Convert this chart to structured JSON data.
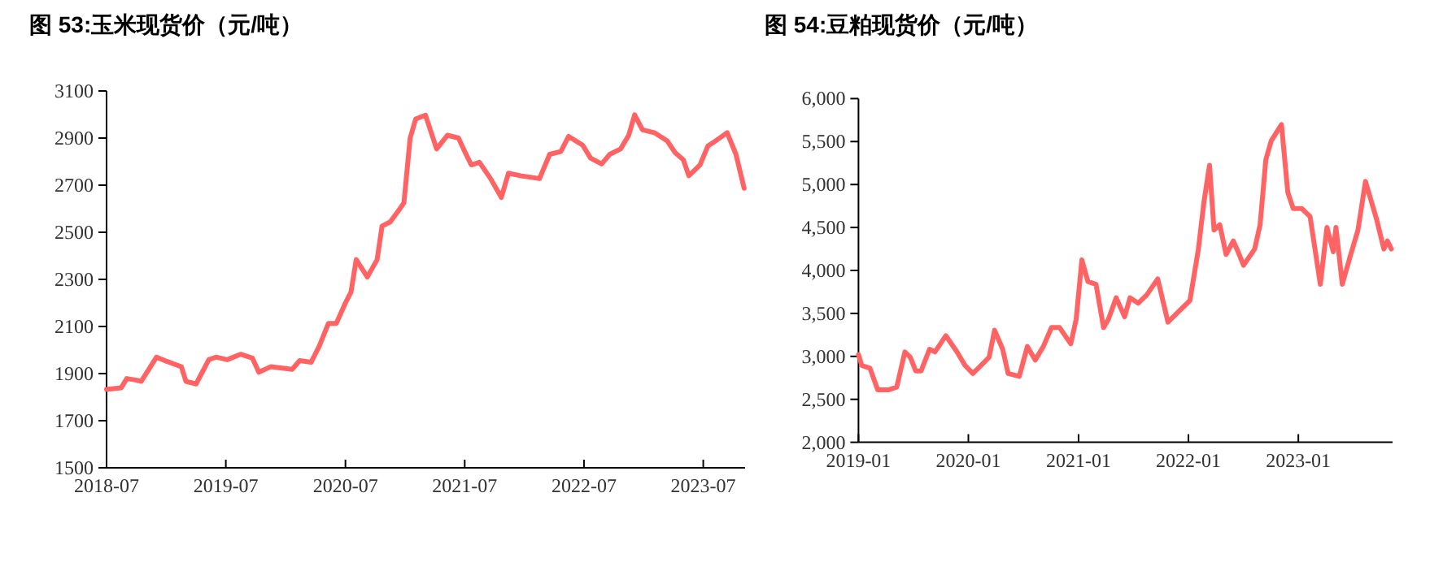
{
  "chart_data": [
    {
      "type": "line",
      "title": "图 53:玉米现货价（元/吨）",
      "xlim": [
        "2018-07-01",
        "2023-11-06"
      ],
      "ylim": [
        1500,
        3100
      ],
      "xticks": [
        "2018-07",
        "2019-07",
        "2020-07",
        "2021-07",
        "2022-07",
        "2023-07"
      ],
      "yticks": [
        1500,
        1700,
        1900,
        2100,
        2300,
        2500,
        2700,
        2900,
        3100
      ],
      "series": [
        {
          "color": "#ff6363",
          "x": [
            "2018-07-01",
            "2018-08-15",
            "2018-09-01",
            "2018-10-01",
            "2018-10-15",
            "2018-12-01",
            "2019-01-01",
            "2019-02-01",
            "2019-02-15",
            "2019-03-01",
            "2019-04-01",
            "2019-05-10",
            "2019-06-01",
            "2019-07-05",
            "2019-08-15",
            "2019-09-20",
            "2019-10-10",
            "2019-11-15",
            "2020-01-20",
            "2020-02-12",
            "2020-03-18",
            "2020-04-12",
            "2020-05-10",
            "2020-06-03",
            "2020-07-01",
            "2020-07-18",
            "2020-08-03",
            "2020-09-06",
            "2020-10-06",
            "2020-10-21",
            "2020-11-15",
            "2020-12-12",
            "2020-12-27",
            "2021-01-15",
            "2021-02-01",
            "2021-03-03",
            "2021-04-06",
            "2021-05-09",
            "2021-06-12",
            "2021-07-01",
            "2021-07-21",
            "2021-08-15",
            "2021-09-18",
            "2021-10-21",
            "2021-11-12",
            "2021-12-18",
            "2022-02-15",
            "2022-03-18",
            "2022-04-21",
            "2022-05-15",
            "2022-06-27",
            "2022-07-21",
            "2022-08-24",
            "2022-09-18",
            "2022-10-21",
            "2022-11-15",
            "2022-12-03",
            "2022-12-27",
            "2023-02-01",
            "2023-03-12",
            "2023-04-06",
            "2023-05-01",
            "2023-05-18",
            "2023-06-21",
            "2023-07-15",
            "2023-08-09",
            "2023-09-12",
            "2023-10-09",
            "2023-11-03"
          ],
          "values": [
            1833,
            1840,
            1879,
            1872,
            1867,
            1970,
            1952,
            1936,
            1929,
            1867,
            1856,
            1959,
            1970,
            1959,
            1982,
            1966,
            1906,
            1929,
            1918,
            1955,
            1948,
            2017,
            2113,
            2113,
            2200,
            2246,
            2384,
            2310,
            2384,
            2526,
            2544,
            2595,
            2625,
            2900,
            2981,
            2997,
            2854,
            2912,
            2900,
            2843,
            2786,
            2797,
            2728,
            2648,
            2751,
            2740,
            2728,
            2831,
            2843,
            2907,
            2870,
            2815,
            2790,
            2831,
            2854,
            2912,
            2999,
            2935,
            2923,
            2889,
            2838,
            2808,
            2740,
            2786,
            2866,
            2889,
            2923,
            2831,
            2687
          ]
        }
      ]
    },
    {
      "type": "line",
      "title": "图 54:豆粕现货价（元/吨）",
      "xlim": [
        "2019-01-01",
        "2023-11-10"
      ],
      "ylim": [
        2000,
        6000
      ],
      "xticks": [
        "2019-01",
        "2020-01",
        "2021-01",
        "2022-01",
        "2023-01"
      ],
      "yticks": [
        {
          "value": 2000,
          "label": "2,000"
        },
        {
          "value": 2500,
          "label": "2,500"
        },
        {
          "value": 3000,
          "label": "3,000"
        },
        {
          "value": 3500,
          "label": "3,500"
        },
        {
          "value": 4000,
          "label": "4,000"
        },
        {
          "value": 4500,
          "label": "4,500"
        },
        {
          "value": 5000,
          "label": "5,000"
        },
        {
          "value": 5500,
          "label": "5,500"
        },
        {
          "value": 6000,
          "label": "6,000"
        }
      ],
      "series": [
        {
          "color": "#ff6363",
          "x": [
            "2019-01-01",
            "2019-01-12",
            "2019-02-08",
            "2019-03-06",
            "2019-04-12",
            "2019-05-08",
            "2019-06-04",
            "2019-06-22",
            "2019-07-10",
            "2019-07-28",
            "2019-08-25",
            "2019-09-12",
            "2019-10-18",
            "2019-11-24",
            "2019-12-21",
            "2020-01-16",
            "2020-02-21",
            "2020-03-10",
            "2020-03-28",
            "2020-04-24",
            "2020-05-12",
            "2020-06-18",
            "2020-07-15",
            "2020-08-10",
            "2020-09-06",
            "2020-10-03",
            "2020-10-30",
            "2020-12-06",
            "2020-12-24",
            "2021-01-12",
            "2021-02-01",
            "2021-02-28",
            "2021-03-25",
            "2021-04-10",
            "2021-05-06",
            "2021-06-03",
            "2021-06-21",
            "2021-07-18",
            "2021-08-15",
            "2021-09-21",
            "2021-10-25",
            "2021-11-21",
            "2022-01-06",
            "2022-02-03",
            "2022-02-21",
            "2022-03-12",
            "2022-03-27",
            "2022-04-15",
            "2022-05-06",
            "2022-05-30",
            "2022-06-15",
            "2022-07-03",
            "2022-08-09",
            "2022-08-27",
            "2022-09-15",
            "2022-10-03",
            "2022-11-06",
            "2022-11-27",
            "2022-12-15",
            "2023-01-12",
            "2023-02-09",
            "2023-03-15",
            "2023-04-06",
            "2023-04-27",
            "2023-05-06",
            "2023-05-27",
            "2023-06-24",
            "2023-07-18",
            "2023-08-12",
            "2023-09-18",
            "2023-10-12",
            "2023-10-24",
            "2023-11-06"
          ],
          "values": [
            3020,
            2894,
            2863,
            2611,
            2611,
            2642,
            3052,
            2989,
            2831,
            2831,
            3083,
            3052,
            3241,
            3052,
            2894,
            2800,
            2926,
            2989,
            3304,
            3083,
            2800,
            2768,
            3115,
            2957,
            3115,
            3335,
            3335,
            3146,
            3430,
            4123,
            3871,
            3839,
            3335,
            3430,
            3682,
            3461,
            3682,
            3619,
            3713,
            3902,
            3398,
            3493,
            3650,
            4249,
            4784,
            5225,
            4469,
            4532,
            4186,
            4343,
            4217,
            4060,
            4249,
            4532,
            5288,
            5509,
            5698,
            4910,
            4721,
            4721,
            4627,
            3839,
            4501,
            4217,
            4501,
            3839,
            4186,
            4469,
            5036,
            4595,
            4249,
            4343,
            4249
          ]
        }
      ]
    }
  ]
}
